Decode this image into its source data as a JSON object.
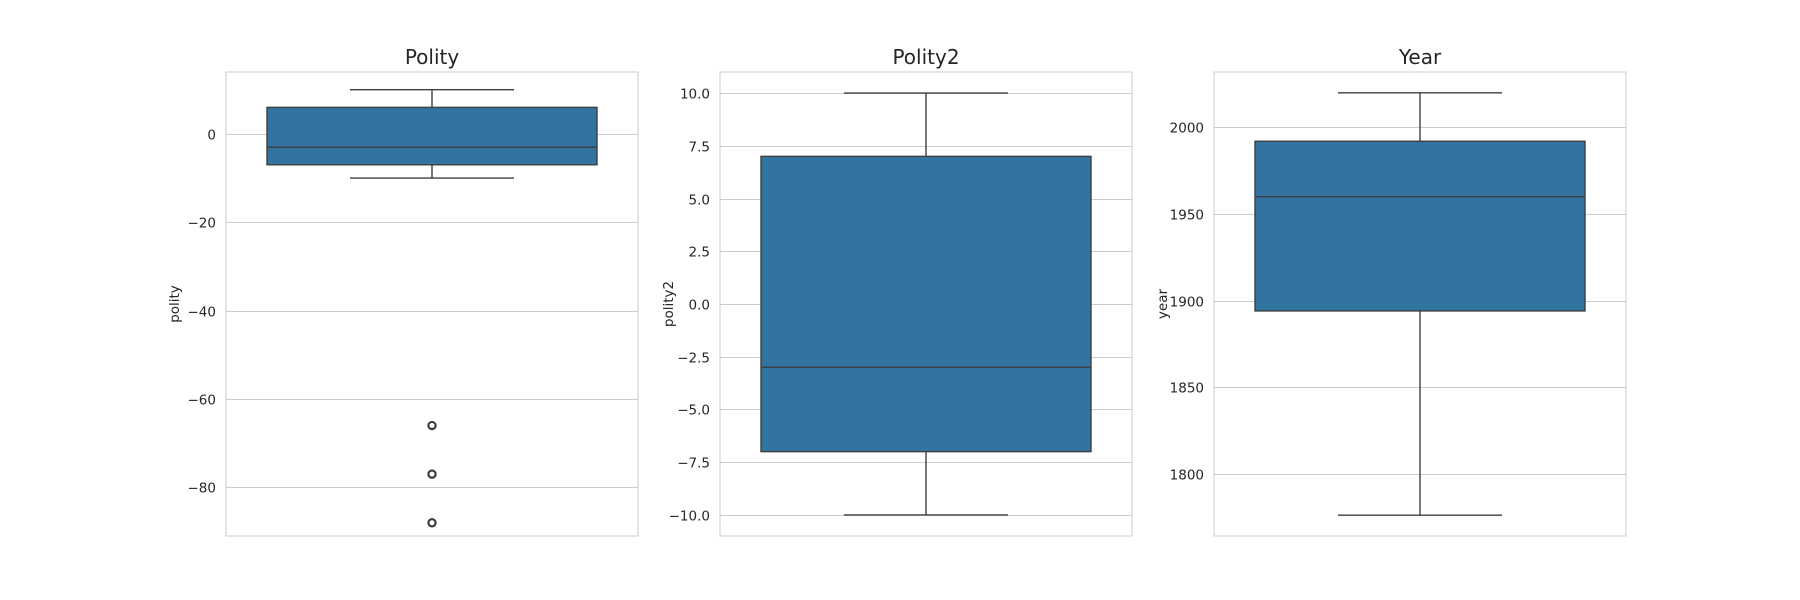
{
  "chart_data": [
    {
      "type": "box",
      "title": "Polity",
      "ylabel": "polity",
      "ylim": [
        -91,
        14
      ],
      "yticks": [
        0,
        -20,
        -40,
        -60,
        -80
      ],
      "ytick_labels": [
        "0",
        "−20",
        "−40",
        "−60",
        "−80"
      ],
      "box": {
        "whisker_low": -10,
        "q1": -7,
        "median": -3,
        "q3": 6,
        "whisker_high": 10
      },
      "outliers": [
        -66,
        -77,
        -88
      ],
      "color": "#3274a1",
      "grid": true
    },
    {
      "type": "box",
      "title": "Polity2",
      "ylabel": "polity2",
      "ylim": [
        -11,
        11
      ],
      "yticks": [
        10,
        7.5,
        5,
        2.5,
        0,
        -2.5,
        -5,
        -7.5,
        -10
      ],
      "ytick_labels": [
        "10.0",
        "7.5",
        "5.0",
        "2.5",
        "0.0",
        "−2.5",
        "−5.0",
        "−7.5",
        "−10.0"
      ],
      "box": {
        "whisker_low": -10,
        "q1": -7,
        "median": -3,
        "q3": 7,
        "whisker_high": 10
      },
      "outliers": [],
      "color": "#3274a1",
      "grid": true
    },
    {
      "type": "box",
      "title": "Year",
      "ylabel": "year",
      "ylim": [
        1764,
        2032
      ],
      "yticks": [
        2000,
        1950,
        1900,
        1850,
        1800
      ],
      "ytick_labels": [
        "2000",
        "1950",
        "1900",
        "1850",
        "1800"
      ],
      "box": {
        "whisker_low": 1776,
        "q1": 1894,
        "median": 1960,
        "q3": 1992,
        "whisker_high": 2020
      },
      "outliers": [],
      "color": "#3274a1",
      "grid": true
    }
  ]
}
